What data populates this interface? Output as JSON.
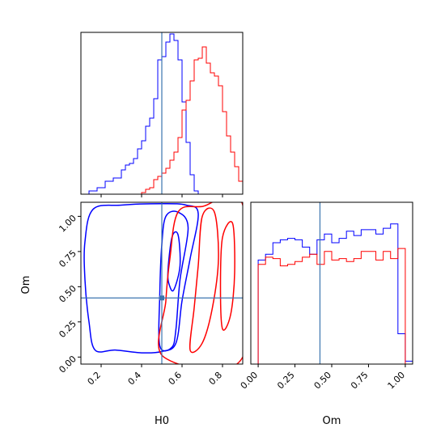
{
  "chart_data": {
    "type": "corner",
    "truth": {
      "H0": 0.5,
      "Om": 0.42
    },
    "colors": {
      "blue": "#0000ff",
      "red": "#ff0000",
      "truth": "#3b75af"
    },
    "axis_labels": {
      "x_bottom_left": "H0",
      "x_bottom_right": "Om",
      "y_left": "Om"
    },
    "panels": [
      {
        "id": "hist-H0",
        "type": "histogram",
        "xlim": [
          0.1,
          0.9
        ],
        "xticks": [
          0.2,
          0.4,
          0.6,
          0.8
        ],
        "ylim": [
          0,
          1.0
        ],
        "series": [
          {
            "color": "blue",
            "edges": [
              0.14,
              0.18,
              0.22,
              0.26,
              0.3,
              0.32,
              0.34,
              0.36,
              0.38,
              0.4,
              0.42,
              0.44,
              0.46,
              0.48,
              0.5,
              0.52,
              0.54,
              0.56,
              0.58,
              0.6,
              0.62,
              0.64,
              0.66,
              0.68
            ],
            "heights": [
              0.02,
              0.04,
              0.08,
              0.1,
              0.15,
              0.18,
              0.19,
              0.22,
              0.28,
              0.33,
              0.42,
              0.47,
              0.59,
              0.83,
              0.85,
              0.94,
              0.99,
              0.95,
              0.83,
              0.57,
              0.32,
              0.12,
              0.02
            ]
          },
          {
            "color": "red",
            "edges": [
              0.4,
              0.42,
              0.44,
              0.46,
              0.48,
              0.5,
              0.52,
              0.54,
              0.56,
              0.58,
              0.6,
              0.62,
              0.64,
              0.66,
              0.68,
              0.7,
              0.72,
              0.74,
              0.76,
              0.78,
              0.8,
              0.82,
              0.84,
              0.86,
              0.88,
              0.9
            ],
            "heights": [
              0.01,
              0.03,
              0.04,
              0.09,
              0.11,
              0.13,
              0.16,
              0.21,
              0.26,
              0.35,
              0.52,
              0.58,
              0.7,
              0.83,
              0.84,
              0.91,
              0.81,
              0.75,
              0.73,
              0.67,
              0.51,
              0.36,
              0.26,
              0.17,
              0.08
            ]
          }
        ]
      },
      {
        "id": "contour-H0-Om",
        "type": "contour",
        "xlim": [
          0.1,
          0.9
        ],
        "ylim": [
          -0.05,
          1.1
        ],
        "xticks": [
          0.2,
          0.4,
          0.6,
          0.8
        ],
        "yticks": [
          0.0,
          0.25,
          0.5,
          0.75,
          1.0
        ],
        "ytick_labels": [
          "0.00",
          "0.25",
          "0.50",
          "0.75",
          "1.00"
        ],
        "series": [
          {
            "color": "blue",
            "levels": [
              [
                [
                  0.17,
                  0.05
                ],
                [
                  0.14,
                  0.25
                ],
                [
                  0.12,
                  0.55
                ],
                [
                  0.12,
                  0.82
                ],
                [
                  0.16,
                  1.05
                ],
                [
                  0.3,
                  1.08
                ],
                [
                  0.5,
                  1.09
                ],
                [
                  0.62,
                  1.08
                ],
                [
                  0.68,
                  1.02
                ],
                [
                  0.64,
                  0.7
                ],
                [
                  0.6,
                  0.4
                ],
                [
                  0.57,
                  0.1
                ],
                [
                  0.5,
                  0.04
                ],
                [
                  0.4,
                  0.03
                ],
                [
                  0.27,
                  0.05
                ]
              ],
              [
                [
                  0.49,
                  0.08
                ],
                [
                  0.49,
                  0.45
                ],
                [
                  0.5,
                  0.8
                ],
                [
                  0.52,
                  1.0
                ],
                [
                  0.58,
                  1.03
                ],
                [
                  0.63,
                  0.92
                ],
                [
                  0.59,
                  0.55
                ],
                [
                  0.57,
                  0.2
                ],
                [
                  0.55,
                  0.07
                ]
              ],
              [
                [
                  0.53,
                  0.6
                ],
                [
                  0.55,
                  0.85
                ],
                [
                  0.58,
                  0.87
                ],
                [
                  0.59,
                  0.65
                ],
                [
                  0.56,
                  0.48
                ],
                [
                  0.54,
                  0.5
                ]
              ]
            ]
          },
          {
            "color": "red",
            "levels": [
              [
                [
                  0.51,
                  0.0
                ],
                [
                  0.52,
                  0.4
                ],
                [
                  0.54,
                  0.7
                ],
                [
                  0.58,
                  1.03
                ],
                [
                  0.7,
                  1.07
                ],
                [
                  0.9,
                  1.08
                ],
                [
                  0.9,
                  0.0
                ]
              ],
              [
                [
                  0.64,
                  0.05
                ],
                [
                  0.66,
                  0.35
                ],
                [
                  0.68,
                  0.65
                ],
                [
                  0.7,
                  1.0
                ],
                [
                  0.76,
                  1.03
                ],
                [
                  0.78,
                  0.7
                ],
                [
                  0.75,
                  0.35
                ],
                [
                  0.7,
                  0.1
                ]
              ],
              [
                [
                  0.8,
                  0.2
                ],
                [
                  0.79,
                  0.5
                ],
                [
                  0.8,
                  0.85
                ],
                [
                  0.85,
                  0.95
                ],
                [
                  0.86,
                  0.6
                ],
                [
                  0.84,
                  0.3
                ]
              ]
            ]
          }
        ]
      },
      {
        "id": "hist-Om",
        "type": "histogram",
        "xlim": [
          -0.05,
          1.05
        ],
        "xticks": [
          0.0,
          0.25,
          0.5,
          0.75,
          1.0
        ],
        "xtick_labels": [
          "0.00",
          "0.25",
          "0.50",
          "0.75",
          "1.00"
        ],
        "ylim": [
          0,
          1.12
        ],
        "series": [
          {
            "color": "blue",
            "edges": [
              -0.05,
              0.0,
              0.05,
              0.1,
              0.15,
              0.2,
              0.25,
              0.3,
              0.35,
              0.4,
              0.45,
              0.5,
              0.55,
              0.6,
              0.65,
              0.7,
              0.75,
              0.8,
              0.85,
              0.9,
              0.95,
              1.0,
              1.05
            ],
            "heights": [
              0.0,
              0.72,
              0.76,
              0.84,
              0.86,
              0.87,
              0.86,
              0.81,
              0.76,
              0.86,
              0.9,
              0.84,
              0.87,
              0.92,
              0.89,
              0.93,
              0.93,
              0.9,
              0.94,
              0.97,
              0.21,
              0.02
            ]
          },
          {
            "color": "red",
            "edges": [
              0.0,
              0.05,
              0.1,
              0.15,
              0.2,
              0.25,
              0.3,
              0.35,
              0.4,
              0.45,
              0.5,
              0.55,
              0.6,
              0.65,
              0.7,
              0.75,
              0.8,
              0.85,
              0.9,
              0.95,
              1.0
            ],
            "heights": [
              0.69,
              0.74,
              0.73,
              0.68,
              0.69,
              0.71,
              0.74,
              0.76,
              0.69,
              0.78,
              0.72,
              0.73,
              0.71,
              0.73,
              0.78,
              0.78,
              0.72,
              0.78,
              0.73,
              0.8
            ]
          }
        ]
      }
    ]
  }
}
